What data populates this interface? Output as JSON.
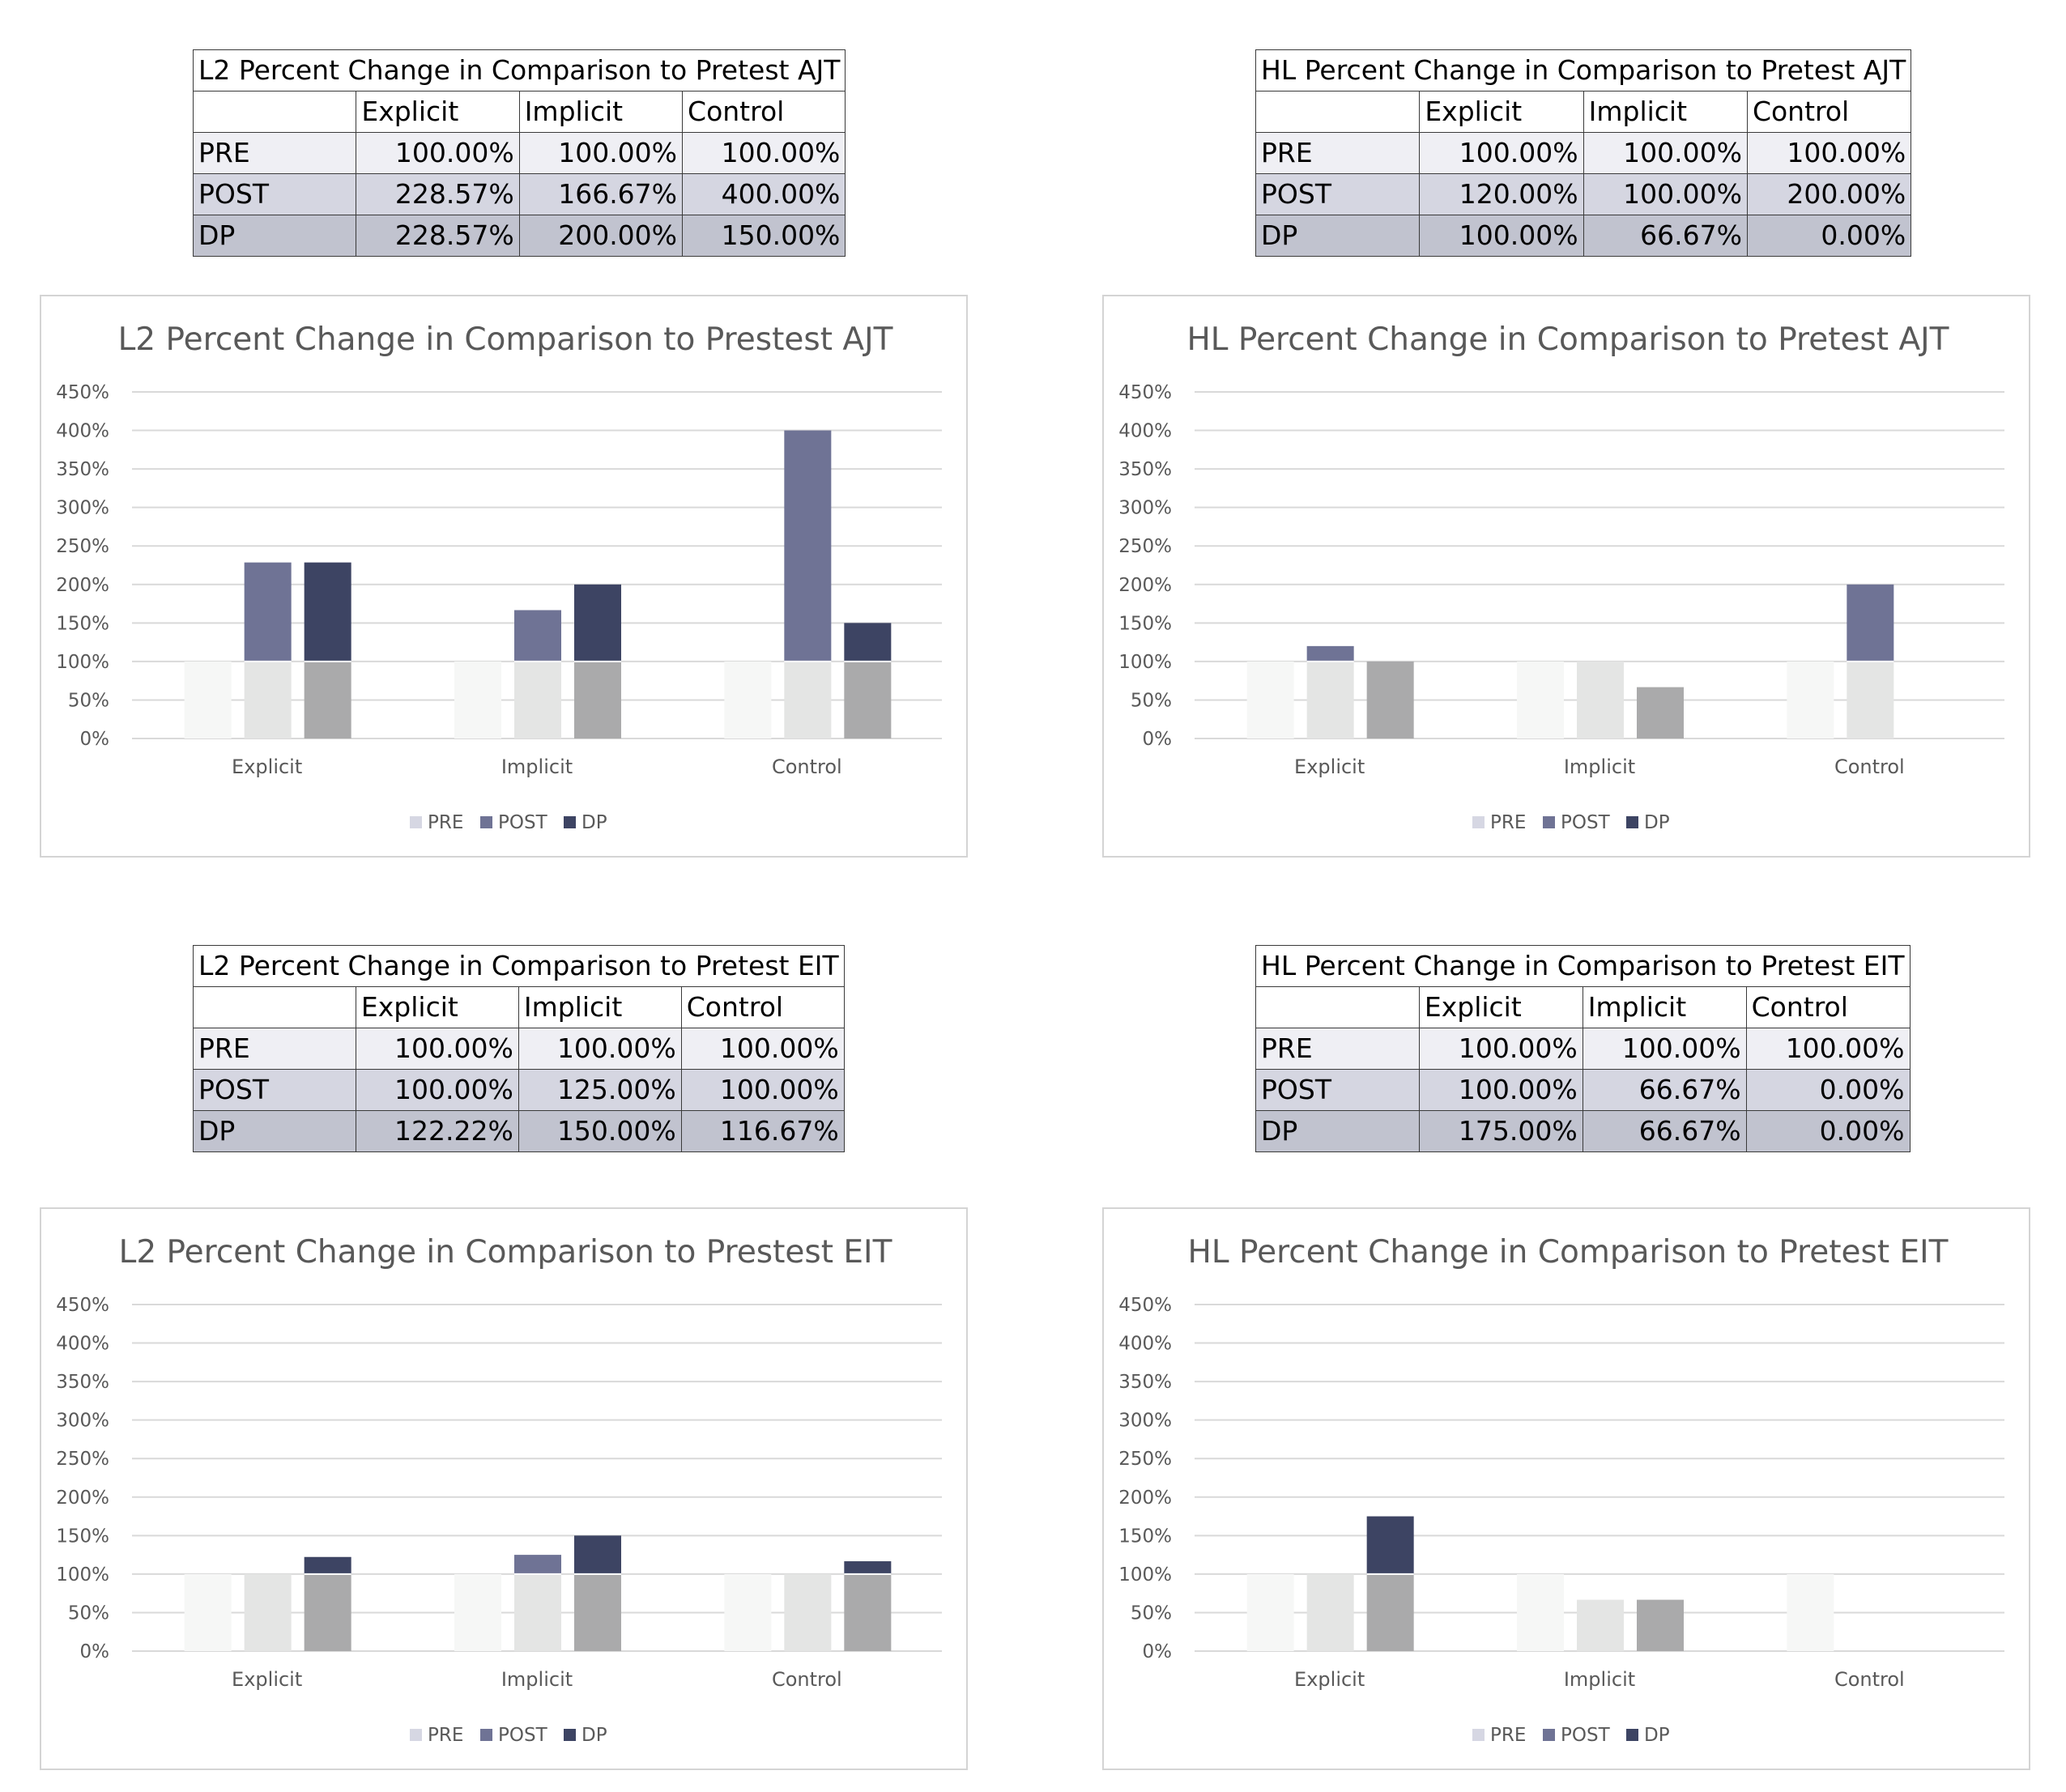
{
  "legend_labels": [
    "PRE",
    "POST",
    "DP"
  ],
  "colors": {
    "pre": [
      "#f6f7f6",
      "#e4e5e4",
      "#aaaaab"
    ],
    "post": "#6f7395",
    "dp": "#3d4463",
    "legend_pre": "#d6d7e3",
    "grid": "#d9d9d9",
    "text": "#595959"
  },
  "tables": [
    {
      "title": "L2 Percent Change in Comparison to Pretest AJT",
      "columns": [
        "Explicit",
        "Implicit",
        "Control"
      ],
      "rows": [
        {
          "label": "PRE",
          "values": [
            "100.00%",
            "100.00%",
            "100.00%"
          ]
        },
        {
          "label": "POST",
          "values": [
            "228.57%",
            "166.67%",
            "400.00%"
          ]
        },
        {
          "label": "DP",
          "values": [
            "228.57%",
            "200.00%",
            "150.00%"
          ]
        }
      ]
    },
    {
      "title": "HL Percent Change in Comparison to Pretest AJT",
      "columns": [
        "Explicit",
        "Implicit",
        "Control"
      ],
      "rows": [
        {
          "label": "PRE",
          "values": [
            "100.00%",
            "100.00%",
            "100.00%"
          ]
        },
        {
          "label": "POST",
          "values": [
            "120.00%",
            "100.00%",
            "200.00%"
          ]
        },
        {
          "label": "DP",
          "values": [
            "100.00%",
            "66.67%",
            "0.00%"
          ]
        }
      ]
    },
    {
      "title": "L2 Percent Change in Comparison to Pretest EIT",
      "columns": [
        "Explicit",
        "Implicit",
        "Control"
      ],
      "rows": [
        {
          "label": "PRE",
          "values": [
            "100.00%",
            "100.00%",
            "100.00%"
          ]
        },
        {
          "label": "POST",
          "values": [
            "100.00%",
            "125.00%",
            "100.00%"
          ]
        },
        {
          "label": "DP",
          "values": [
            "122.22%",
            "150.00%",
            "116.67%"
          ]
        }
      ]
    },
    {
      "title": "HL Percent Change in Comparison to Pretest EIT",
      "columns": [
        "Explicit",
        "Implicit",
        "Control"
      ],
      "rows": [
        {
          "label": "PRE",
          "values": [
            "100.00%",
            "100.00%",
            "100.00%"
          ]
        },
        {
          "label": "POST",
          "values": [
            "100.00%",
            "66.67%",
            "0.00%"
          ]
        },
        {
          "label": "DP",
          "values": [
            "175.00%",
            "66.67%",
            "0.00%"
          ]
        }
      ]
    }
  ],
  "chart_data": [
    {
      "type": "bar",
      "title": "L2 Percent Change in Comparison to Prestest AJT",
      "categories": [
        "Explicit",
        "Implicit",
        "Control"
      ],
      "series": [
        {
          "name": "PRE",
          "values": [
            100,
            100,
            100
          ]
        },
        {
          "name": "POST",
          "values": [
            228.57,
            166.67,
            400
          ]
        },
        {
          "name": "DP",
          "values": [
            228.57,
            200,
            150
          ]
        }
      ],
      "ylim": [
        0,
        450
      ],
      "yticks": [
        "0%",
        "50%",
        "100%",
        "150%",
        "200%",
        "250%",
        "300%",
        "350%",
        "400%",
        "450%"
      ],
      "grid": true,
      "legend": "bottom"
    },
    {
      "type": "bar",
      "title": "HL Percent Change in Comparison to Pretest AJT",
      "categories": [
        "Explicit",
        "Implicit",
        "Control"
      ],
      "series": [
        {
          "name": "PRE",
          "values": [
            100,
            100,
            100
          ]
        },
        {
          "name": "POST",
          "values": [
            120,
            100,
            200
          ]
        },
        {
          "name": "DP",
          "values": [
            100,
            66.67,
            0
          ]
        }
      ],
      "ylim": [
        0,
        450
      ],
      "yticks": [
        "0%",
        "50%",
        "100%",
        "150%",
        "200%",
        "250%",
        "300%",
        "350%",
        "400%",
        "450%"
      ],
      "grid": true,
      "legend": "bottom"
    },
    {
      "type": "bar",
      "title": "L2 Percent Change in Comparison to Prestest EIT",
      "categories": [
        "Explicit",
        "Implicit",
        "Control"
      ],
      "series": [
        {
          "name": "PRE",
          "values": [
            100,
            100,
            100
          ]
        },
        {
          "name": "POST",
          "values": [
            100,
            125,
            100
          ]
        },
        {
          "name": "DP",
          "values": [
            122.22,
            150,
            116.67
          ]
        }
      ],
      "ylim": [
        0,
        450
      ],
      "yticks": [
        "0%",
        "50%",
        "100%",
        "150%",
        "200%",
        "250%",
        "300%",
        "350%",
        "400%",
        "450%"
      ],
      "grid": true,
      "legend": "bottom"
    },
    {
      "type": "bar",
      "title": "HL Percent Change in Comparison to Pretest EIT",
      "categories": [
        "Explicit",
        "Implicit",
        "Control"
      ],
      "series": [
        {
          "name": "PRE",
          "values": [
            100,
            100,
            100
          ]
        },
        {
          "name": "POST",
          "values": [
            100,
            66.67,
            0
          ]
        },
        {
          "name": "DP",
          "values": [
            175,
            66.67,
            0
          ]
        }
      ],
      "ylim": [
        0,
        450
      ],
      "yticks": [
        "0%",
        "50%",
        "100%",
        "150%",
        "200%",
        "250%",
        "300%",
        "350%",
        "400%",
        "450%"
      ],
      "grid": true,
      "legend": "bottom"
    }
  ]
}
